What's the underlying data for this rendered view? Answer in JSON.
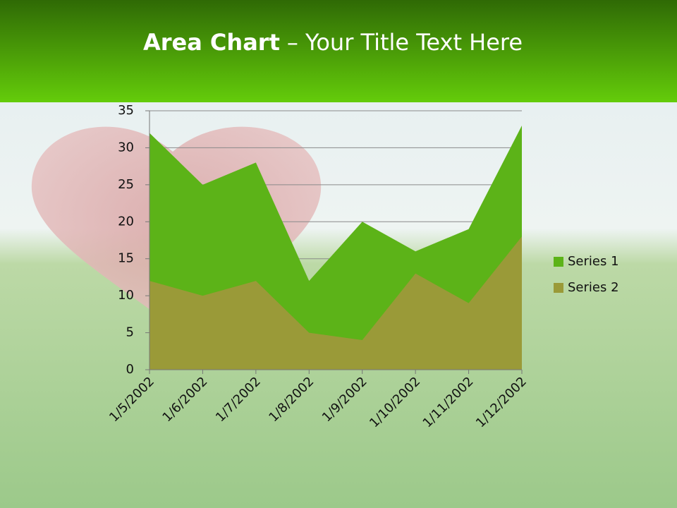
{
  "chart_data": {
    "type": "area",
    "title": "Area Chart",
    "title_rest": "– Your Title Text Here",
    "categories": [
      "1/5/2002",
      "1/6/2002",
      "1/7/2002",
      "1/8/2002",
      "1/9/2002",
      "1/10/2002",
      "1/11/2002",
      "1/12/2002"
    ],
    "series": [
      {
        "name": "Series 1",
        "color": "#5cb318",
        "values": [
          32,
          25,
          28,
          12,
          20,
          16,
          19,
          33
        ]
      },
      {
        "name": "Series 2",
        "color": "#9a9a38",
        "values": [
          12,
          10,
          12,
          5,
          4,
          13,
          9,
          18
        ]
      }
    ],
    "ylim": [
      0,
      35
    ],
    "yticks": [
      0,
      5,
      10,
      15,
      20,
      25,
      30,
      35
    ],
    "grid": true,
    "legend": "right"
  }
}
